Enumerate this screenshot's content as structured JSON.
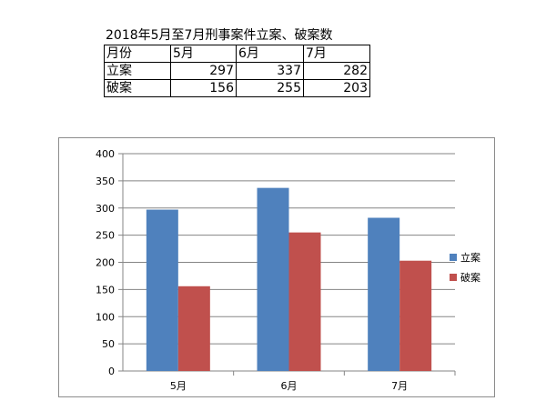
{
  "table": {
    "title": "2018年5月至7月刑事案件立案、破案数",
    "header": [
      "月份",
      "5月",
      "6月",
      "7月"
    ],
    "rows": [
      [
        "立案",
        "297",
        "337",
        "282"
      ],
      [
        "破案",
        "156",
        "255",
        "203"
      ]
    ]
  },
  "chart_data": {
    "type": "bar",
    "categories": [
      "5月",
      "6月",
      "7月"
    ],
    "series": [
      {
        "name": "立案",
        "values": [
          297,
          337,
          282
        ],
        "color": "#4f81bd"
      },
      {
        "name": "破案",
        "values": [
          156,
          255,
          203
        ],
        "color": "#c0504d"
      }
    ],
    "ylim": [
      0,
      400
    ],
    "yticks": [
      0,
      50,
      100,
      150,
      200,
      250,
      300,
      350,
      400
    ],
    "grid": true,
    "legend": "right"
  }
}
